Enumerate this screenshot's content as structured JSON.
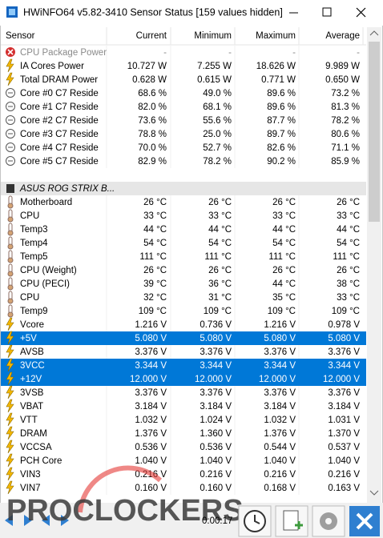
{
  "window": {
    "title": "HWiNFO64 v5.82-3410 Sensor Status [159 values hidden]"
  },
  "table": {
    "columns": [
      "Sensor",
      "Current",
      "Minimum",
      "Maximum",
      "Average"
    ],
    "rows": [
      {
        "name": "CPU Package Power",
        "icon": "error",
        "disabled": true,
        "cells": [
          "-",
          "-",
          "-",
          "-"
        ]
      },
      {
        "name": "IA Cores Power",
        "icon": "power",
        "cells": [
          "10.727 W",
          "7.255 W",
          "18.626 W",
          "9.989 W"
        ]
      },
      {
        "name": "Total DRAM Power",
        "icon": "power",
        "cells": [
          "0.628 W",
          "0.615 W",
          "0.771 W",
          "0.650 W"
        ]
      },
      {
        "name": "Core #0 C7 Reside",
        "icon": "clock",
        "cells": [
          "68.6 %",
          "49.0 %",
          "89.6 %",
          "73.2 %"
        ]
      },
      {
        "name": "Core #1 C7 Reside",
        "icon": "clock",
        "cells": [
          "82.0 %",
          "68.1 %",
          "89.6 %",
          "81.3 %"
        ]
      },
      {
        "name": "Core #2 C7 Reside",
        "icon": "clock",
        "cells": [
          "73.6 %",
          "55.6 %",
          "87.7 %",
          "78.2 %"
        ]
      },
      {
        "name": "Core #3 C7 Reside",
        "icon": "clock",
        "cells": [
          "78.8 %",
          "25.0 %",
          "89.7 %",
          "80.6 %"
        ]
      },
      {
        "name": "Core #4 C7 Reside",
        "icon": "clock",
        "cells": [
          "70.0 %",
          "52.7 %",
          "82.6 %",
          "71.1 %"
        ]
      },
      {
        "name": "Core #5 C7 Reside",
        "icon": "clock",
        "cells": [
          "82.9 %",
          "78.2 %",
          "90.2 %",
          "85.9 %"
        ]
      },
      {
        "group": "ASUS ROG STRIX B..."
      },
      {
        "name": "Motherboard",
        "icon": "temp",
        "cells": [
          "26 °C",
          "26 °C",
          "26 °C",
          "26 °C"
        ]
      },
      {
        "name": "CPU",
        "icon": "temp",
        "cells": [
          "33 °C",
          "33 °C",
          "33 °C",
          "33 °C"
        ]
      },
      {
        "name": "Temp3",
        "icon": "temp",
        "cells": [
          "44 °C",
          "44 °C",
          "44 °C",
          "44 °C"
        ]
      },
      {
        "name": "Temp4",
        "icon": "temp",
        "cells": [
          "54 °C",
          "54 °C",
          "54 °C",
          "54 °C"
        ]
      },
      {
        "name": "Temp5",
        "icon": "temp",
        "cells": [
          "111 °C",
          "111 °C",
          "111 °C",
          "111 °C"
        ]
      },
      {
        "name": "CPU (Weight)",
        "icon": "temp",
        "cells": [
          "26 °C",
          "26 °C",
          "26 °C",
          "26 °C"
        ]
      },
      {
        "name": "CPU (PECI)",
        "icon": "temp",
        "cells": [
          "39 °C",
          "36 °C",
          "44 °C",
          "38 °C"
        ]
      },
      {
        "name": "CPU",
        "icon": "temp",
        "cells": [
          "32 °C",
          "31 °C",
          "35 °C",
          "33 °C"
        ]
      },
      {
        "name": "Temp9",
        "icon": "temp",
        "cells": [
          "109 °C",
          "109 °C",
          "109 °C",
          "109 °C"
        ]
      },
      {
        "name": "Vcore",
        "icon": "power",
        "cells": [
          "1.216 V",
          "0.736 V",
          "1.216 V",
          "0.978 V"
        ]
      },
      {
        "name": "+5V",
        "icon": "power",
        "selected": true,
        "cells": [
          "5.080 V",
          "5.080 V",
          "5.080 V",
          "5.080 V"
        ]
      },
      {
        "name": "AVSB",
        "icon": "power",
        "cells": [
          "3.376 V",
          "3.376 V",
          "3.376 V",
          "3.376 V"
        ]
      },
      {
        "name": "3VCC",
        "icon": "power",
        "selected": true,
        "cells": [
          "3.344 V",
          "3.344 V",
          "3.344 V",
          "3.344 V"
        ]
      },
      {
        "name": "+12V",
        "icon": "power",
        "selected": true,
        "cells": [
          "12.000 V",
          "12.000 V",
          "12.000 V",
          "12.000 V"
        ]
      },
      {
        "name": "3VSB",
        "icon": "power",
        "cells": [
          "3.376 V",
          "3.376 V",
          "3.376 V",
          "3.376 V"
        ]
      },
      {
        "name": "VBAT",
        "icon": "power",
        "cells": [
          "3.184 V",
          "3.184 V",
          "3.184 V",
          "3.184 V"
        ]
      },
      {
        "name": "VTT",
        "icon": "power",
        "cells": [
          "1.032 V",
          "1.024 V",
          "1.032 V",
          "1.031 V"
        ]
      },
      {
        "name": "DRAM",
        "icon": "power",
        "cells": [
          "1.376 V",
          "1.360 V",
          "1.376 V",
          "1.370 V"
        ]
      },
      {
        "name": "VCCSA",
        "icon": "power",
        "cells": [
          "0.536 V",
          "0.536 V",
          "0.544 V",
          "0.537 V"
        ]
      },
      {
        "name": "PCH Core",
        "icon": "power",
        "cells": [
          "1.040 V",
          "1.040 V",
          "1.040 V",
          "1.040 V"
        ]
      },
      {
        "name": "VIN3",
        "icon": "power",
        "cells": [
          "0.216 V",
          "0.216 V",
          "0.216 V",
          "0.216 V"
        ]
      },
      {
        "name": "VIN7",
        "icon": "power",
        "cells": [
          "0.160 V",
          "0.160 V",
          "0.168 V",
          "0.163 V"
        ]
      }
    ]
  },
  "footer": {
    "timer": "0:00:17",
    "watermark": "PROCLOCKERS"
  }
}
